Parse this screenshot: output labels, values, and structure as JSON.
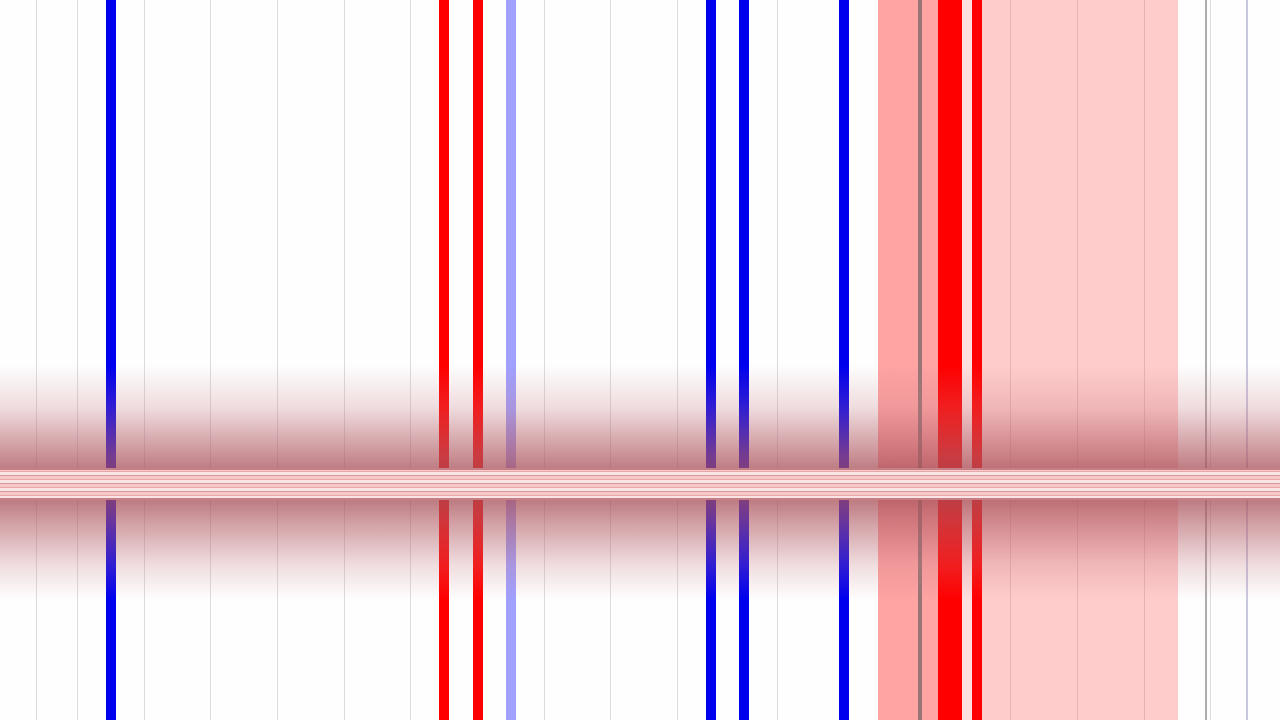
{
  "colors": {
    "background": "#fefefe",
    "blue": "#0000ee",
    "red": "#ff0000",
    "light_blue": "#a0a0ff",
    "pink_light": "#ffcccc",
    "pink_mid": "#ffa3a3",
    "grid": "#dcdcdc"
  }
}
